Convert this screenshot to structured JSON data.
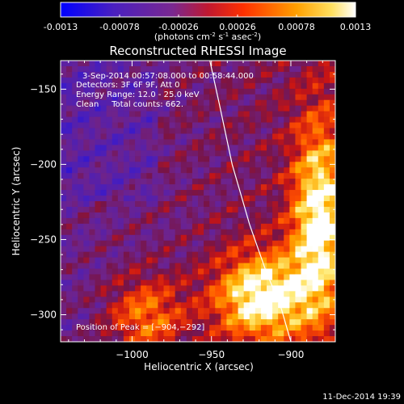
{
  "colorbar": {
    "tick_labels": [
      "-0.0013",
      "-0.00078",
      "-0.00026",
      "0.00026",
      "0.00078",
      "0.0013"
    ],
    "tick_values": [
      -0.0013,
      -0.00078,
      -0.00026,
      0.00026,
      0.00078,
      0.0013
    ],
    "range": [
      -0.0013,
      0.0013
    ],
    "units_prefix": "(photons cm",
    "units_sup1": "-2",
    "units_mid": " s",
    "units_sup2": "-1",
    "units_mid2": " asec",
    "units_sup3": "-2",
    "units_suffix": ")",
    "colors": [
      "#0000ff",
      "#5a1fb0",
      "#8a2a7e",
      "#ff2000",
      "#ffa000",
      "#ffffff"
    ]
  },
  "chart_data": {
    "type": "heatmap",
    "title": "Reconstructed RHESSI Image",
    "xlabel": "Heliocentric X (arcsec)",
    "ylabel": "Heliocentric Y (arcsec)",
    "xlim": [
      -1045,
      -872
    ],
    "ylim": [
      -318,
      -131
    ],
    "x_ticks": [
      -1000,
      -950,
      -900
    ],
    "x_tick_labels": [
      "−1000",
      "−950",
      "−900"
    ],
    "y_ticks": [
      -150,
      -200,
      -250,
      -300
    ],
    "y_tick_labels": [
      "−150",
      "−200",
      "−250",
      "−300"
    ],
    "limb_curve": [
      [
        -951,
        -131
      ],
      [
        -945,
        -160
      ],
      [
        -937,
        -200
      ],
      [
        -926,
        -240
      ],
      [
        -916,
        -270
      ],
      [
        -906,
        -296
      ],
      [
        -900,
        -318
      ]
    ],
    "peak": [
      -904,
      -292
    ],
    "annotations": {
      "time": "3-Sep-2014 00:57:08.000 to 00:58:44.000",
      "detectors": "Detectors: 3F 6F 9F, Att 0",
      "energy": "Energy Range: 12.0 - 25.0 keV",
      "clean": "Clean     Total counts: 662.",
      "peak_label": "Position of Peak = [−904,−292]"
    }
  },
  "footer": {
    "timestamp": "11-Dec-2014 19:39"
  }
}
